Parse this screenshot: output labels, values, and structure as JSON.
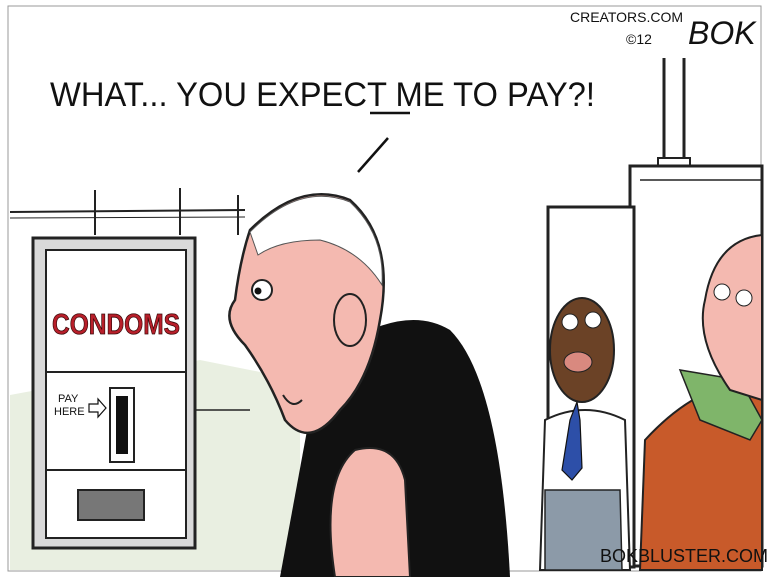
{
  "credit": {
    "site": "CREATORS.COM",
    "year": "©12",
    "signature": "BOK"
  },
  "speech": {
    "before": "WHAT... YOU EXPECT ",
    "emphasis": "ME",
    "after": " TO PAY?!"
  },
  "machine": {
    "label": "CONDOMS",
    "pay": "PAY",
    "here": "HERE"
  },
  "footer": "BOKBLUSTER.COM"
}
